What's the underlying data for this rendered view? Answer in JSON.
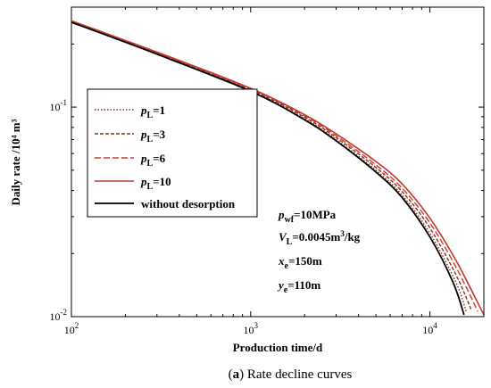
{
  "chart_data": {
    "type": "line",
    "title": "",
    "caption": {
      "label": "a",
      "text": " Rate decline curves"
    },
    "xlabel": "Production time/d",
    "ylabel": "Daily rate /10⁴ m³",
    "xscale": "log",
    "yscale": "log",
    "xlim": [
      100,
      20000
    ],
    "ylim": [
      0.01,
      0.3
    ],
    "xticks": [
      {
        "base": "10",
        "exp": "2"
      },
      {
        "base": "10",
        "exp": "3"
      },
      {
        "base": "10",
        "exp": "4"
      }
    ],
    "yticks": [
      {
        "base": "10",
        "exp": "-1"
      },
      {
        "base": "10",
        "exp": "-2"
      }
    ],
    "grid": false,
    "legend_placement": "upper-left",
    "series": [
      {
        "name_main": "p",
        "name_sub": "L",
        "name_rest": "=1",
        "color": "#8b2c1c",
        "dash": "1.5,2",
        "width": 1.4,
        "points": [
          [
            100,
            0.255
          ],
          [
            300,
            0.18
          ],
          [
            1000,
            0.12
          ],
          [
            2000,
            0.088
          ],
          [
            3000,
            0.07
          ],
          [
            5000,
            0.05
          ],
          [
            7000,
            0.038
          ],
          [
            10000,
            0.025
          ],
          [
            14000,
            0.0145
          ],
          [
            16000,
            0.0105
          ]
        ]
      },
      {
        "name_main": "p",
        "name_sub": "L",
        "name_rest": "=3",
        "color": "#8b2c1c",
        "dash": "4,2",
        "width": 1.4,
        "points": [
          [
            100,
            0.256
          ],
          [
            300,
            0.181
          ],
          [
            1000,
            0.121
          ],
          [
            2000,
            0.0895
          ],
          [
            3000,
            0.0715
          ],
          [
            5000,
            0.0515
          ],
          [
            7000,
            0.0395
          ],
          [
            10000,
            0.0265
          ],
          [
            14000,
            0.0158
          ],
          [
            17000,
            0.0108
          ]
        ]
      },
      {
        "name_main": "p",
        "name_sub": "L",
        "name_rest": "=6",
        "color": "#c83c2c",
        "dash": "7,3",
        "width": 1.4,
        "points": [
          [
            100,
            0.257
          ],
          [
            300,
            0.182
          ],
          [
            1000,
            0.122
          ],
          [
            2000,
            0.091
          ],
          [
            3000,
            0.073
          ],
          [
            5000,
            0.053
          ],
          [
            7000,
            0.041
          ],
          [
            10000,
            0.028
          ],
          [
            14000,
            0.0172
          ],
          [
            18500,
            0.0106
          ]
        ]
      },
      {
        "name_main": "p",
        "name_sub": "L",
        "name_rest": "=10",
        "color": "#c0392b",
        "dash": "",
        "width": 1.6,
        "points": [
          [
            100,
            0.258
          ],
          [
            300,
            0.183
          ],
          [
            1000,
            0.123
          ],
          [
            2000,
            0.092
          ],
          [
            3000,
            0.0745
          ],
          [
            5000,
            0.055
          ],
          [
            7000,
            0.043
          ],
          [
            10000,
            0.0295
          ],
          [
            14000,
            0.0185
          ],
          [
            20000,
            0.0102
          ]
        ]
      },
      {
        "name_main": "without desorption",
        "name_sub": "",
        "name_rest": "",
        "color": "#000000",
        "dash": "",
        "width": 1.8,
        "points": [
          [
            100,
            0.254
          ],
          [
            300,
            0.179
          ],
          [
            1000,
            0.119
          ],
          [
            2000,
            0.087
          ],
          [
            3000,
            0.069
          ],
          [
            5000,
            0.049
          ],
          [
            7000,
            0.037
          ],
          [
            10000,
            0.024
          ],
          [
            13500,
            0.0145
          ],
          [
            15500,
            0.0102
          ]
        ]
      }
    ],
    "annotations": [
      {
        "main": "p",
        "sub": "wf",
        "rest": "=10MPa",
        "sup": ""
      },
      {
        "main": "V",
        "sub": "L",
        "rest": "=0.0045m",
        "sup": "3",
        "tail": "/kg"
      },
      {
        "main": "x",
        "sub": "e",
        "rest": "=150m",
        "sup": ""
      },
      {
        "main": "y",
        "sub": "e",
        "rest": "=110m",
        "sup": ""
      }
    ]
  }
}
